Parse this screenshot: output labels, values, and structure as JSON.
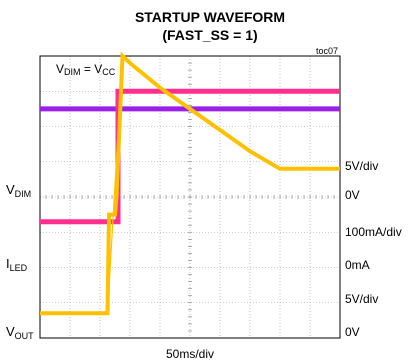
{
  "chart_data": {
    "type": "line",
    "title_line1": "STARTUP WAVEFORM",
    "title_line2": "(FAST_SS = 1)",
    "figure_id": "toc07",
    "condition": {
      "main": "V",
      "sub1": "DIM",
      "mid": " = V",
      "sub2": "CC"
    },
    "xlabel": "50ms/div",
    "grid": {
      "divisions_x": 10,
      "divisions_y": 8,
      "show": true
    },
    "left_labels": [
      {
        "main": "V",
        "sub": "DIM"
      },
      {
        "main": "I",
        "sub": "LED"
      },
      {
        "main": "V",
        "sub": "OUT"
      }
    ],
    "right_labels": [
      "5V/div",
      "0V",
      "100mA/div",
      "0mA",
      "5V/div",
      "0V"
    ],
    "x_range": [
      0,
      10
    ],
    "series": [
      {
        "color": "#9B1FE8",
        "points": [
          [
            0,
            1.5
          ],
          [
            10,
            1.5
          ]
        ]
      },
      {
        "color": "#FF2F8F",
        "points": [
          [
            0,
            4.7
          ],
          [
            0.5,
            4.7
          ],
          [
            1.0,
            4.7
          ],
          [
            1.5,
            4.7
          ],
          [
            2.0,
            4.7
          ],
          [
            2.6,
            4.7
          ],
          [
            2.6,
            1.0
          ],
          [
            3.0,
            1.0
          ],
          [
            4.0,
            1.0
          ],
          [
            5.0,
            1.0
          ],
          [
            6.0,
            1.0
          ],
          [
            7.0,
            1.0
          ],
          [
            8.0,
            1.0
          ],
          [
            9.0,
            1.0
          ],
          [
            10,
            1.0
          ]
        ]
      },
      {
        "color": "#FFC000",
        "points": [
          [
            0,
            7.3
          ],
          [
            1.0,
            7.3
          ],
          [
            2.0,
            7.3
          ],
          [
            2.25,
            7.3
          ],
          [
            2.3,
            4.5
          ],
          [
            2.5,
            4.5
          ],
          [
            2.55,
            4.0
          ],
          [
            2.75,
            0.0
          ],
          [
            3.0,
            0.2
          ],
          [
            4.0,
            0.9
          ],
          [
            5.0,
            1.5
          ],
          [
            6.0,
            2.1
          ],
          [
            7.0,
            2.7
          ],
          [
            8.0,
            3.2
          ],
          [
            9.0,
            3.2
          ],
          [
            10,
            3.2
          ]
        ]
      }
    ]
  }
}
